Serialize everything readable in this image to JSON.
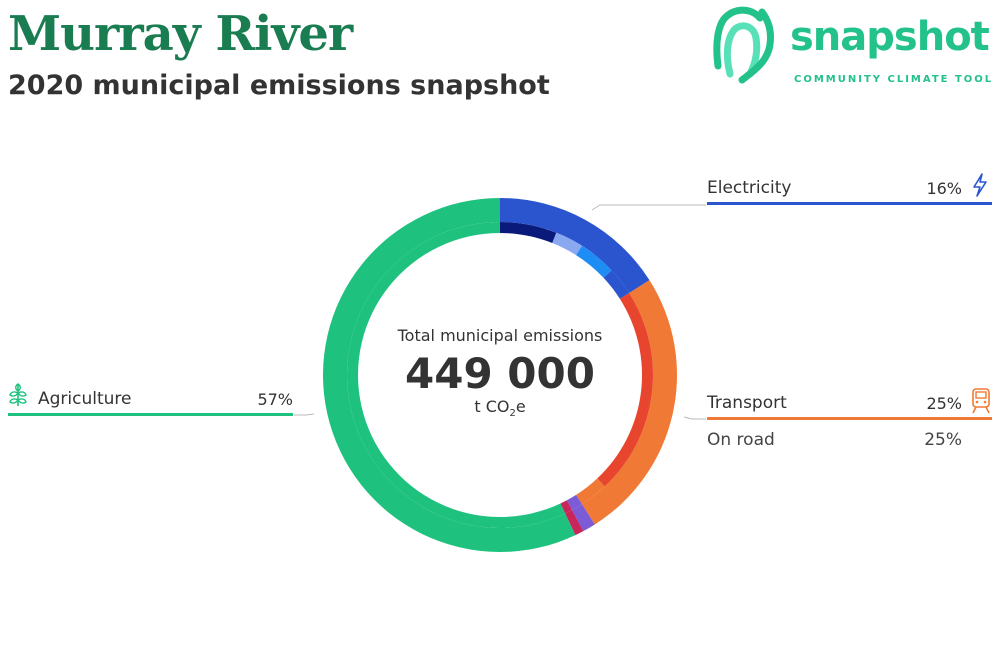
{
  "header": {
    "title": "Murray River",
    "subtitle": "2020 municipal emissions snapshot"
  },
  "logo": {
    "wordmark": "snapshot",
    "tagline": "COMMUNITY CLIMATE TOOL",
    "color": "#22c28a",
    "icon": "fingerprint-logo-icon"
  },
  "center": {
    "label": "Total municipal emissions",
    "value": "449 000",
    "unit_prefix": "t CO",
    "unit_sub": "2",
    "unit_suffix": "e"
  },
  "sectors": {
    "electricity": {
      "name": "Electricity",
      "percent": "16%",
      "color": "#2a55cf",
      "icon": "lightning-bolt-icon"
    },
    "transport": {
      "name": "Transport",
      "percent": "25%",
      "color": "#f07a35",
      "icon": "train-icon",
      "sub": {
        "name": "On road",
        "percent": "25%"
      }
    },
    "agriculture": {
      "name": "Agriculture",
      "percent": "57%",
      "color": "#1ec27e",
      "icon": "wheat-icon"
    }
  },
  "chart_data": {
    "type": "pie",
    "title": "Total municipal emissions",
    "total": 449000,
    "unit": "t CO2e",
    "outer_ring": [
      {
        "label": "Electricity",
        "value": 16,
        "color": "#2a55cf"
      },
      {
        "label": "Transport",
        "value": 25,
        "color": "#f07a35"
      },
      {
        "label": "",
        "value": 1.2,
        "color": "#7b5bd6"
      },
      {
        "label": "",
        "value": 0.8,
        "color": "#c8265a"
      },
      {
        "label": "Agriculture",
        "value": 57,
        "color": "#1ec27e"
      }
    ],
    "inner_ring": [
      {
        "value": 6,
        "color": "#0a1a7a"
      },
      {
        "value": 3,
        "color": "#8aa8f0"
      },
      {
        "value": 4,
        "color": "#1e8cf5"
      },
      {
        "value": 3,
        "color": "#2a55cf"
      },
      {
        "value": 22,
        "color": "#e8452e"
      },
      {
        "value": 3,
        "color": "#f07a35"
      },
      {
        "value": 1.2,
        "color": "#7b5bd6"
      },
      {
        "value": 0.8,
        "color": "#c8265a"
      },
      {
        "value": 57,
        "color": "#1ec27e"
      }
    ]
  }
}
